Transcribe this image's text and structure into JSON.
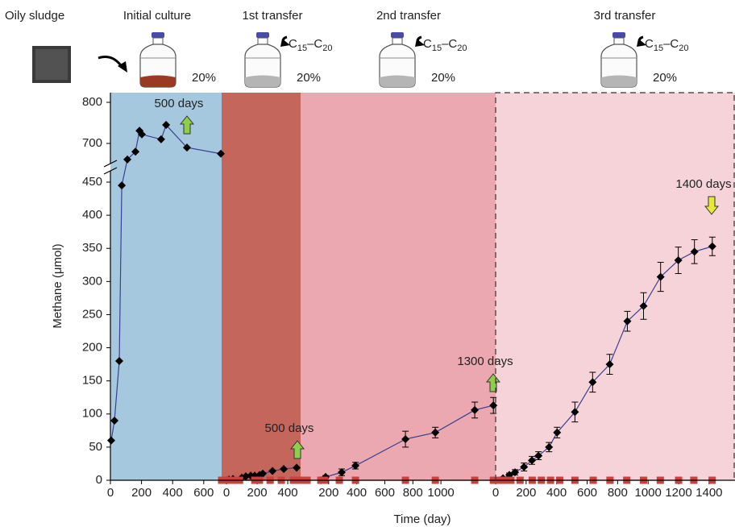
{
  "chart_data": {
    "type": "line",
    "source_label": "Oily sludge",
    "xlabel": "Time (day)",
    "ylabel": "Methane (μmol)",
    "ylim": [
      0,
      800
    ],
    "yticks": [
      0,
      50,
      100,
      150,
      200,
      250,
      300,
      350,
      400,
      450,
      700,
      800
    ],
    "axis_break": [
      450,
      700
    ],
    "panels": [
      {
        "title": "Initial culture",
        "inoculum": "20%",
        "background": "#a6c8df",
        "xlim": [
          0,
          715
        ],
        "xticks": [
          0,
          200,
          400,
          600
        ],
        "annotation": {
          "text": "500 days",
          "color": "#8fce4a",
          "direction": "up"
        },
        "series": [
          {
            "color": "#000000",
            "line_color": "#3b3f8f",
            "marker": "diamond",
            "x": [
              5,
              26,
              57,
              73,
              109,
              161,
              187,
              202,
              326,
              358,
              492,
              710
            ],
            "values": [
              60,
              90,
              180,
              445,
              661,
              680,
              731,
              722,
              710,
              745,
              690,
              675
            ]
          }
        ]
      },
      {
        "title": "1st transfer",
        "inoculum": "20%",
        "substrate": [
          "C",
          "15",
          "–C",
          "20"
        ],
        "background": "#c5665c",
        "xlim": [
          -32,
          484
        ],
        "xticks": [
          0,
          200,
          400
        ],
        "annotation": {
          "text": "500 days",
          "color": "#8fce4a",
          "direction": "up"
        },
        "series": [
          {
            "color": "#000000",
            "line_color": "#3b3f8f",
            "marker": "diamond",
            "x": [
              0,
              16,
              42,
              100,
              126,
              158,
              184,
              216,
              237,
              300,
              374,
              458
            ],
            "values": [
              0,
              1,
              2,
              4,
              6,
              7,
              7,
              8,
              10,
              14,
              17,
              19
            ]
          },
          {
            "color": "#c8413c",
            "line_color": "#c8413c",
            "marker": "square",
            "x": [
              -32,
              0,
              40,
              85,
              185,
              215,
              285,
              358,
              437,
              468
            ],
            "values": [
              0,
              0,
              0,
              0,
              0,
              0,
              0,
              0,
              0,
              0
            ]
          }
        ]
      },
      {
        "title": "2nd transfer",
        "inoculum": "20%",
        "substrate": [
          "C",
          "15",
          "–C",
          "20"
        ],
        "background": "#eba8b0",
        "xlim": [
          0,
          1390
        ],
        "xticks": [
          200,
          400,
          600,
          800,
          1000
        ],
        "annotation": {
          "text": "1300 days",
          "color": "#8fce4a",
          "direction": "up"
        },
        "series": [
          {
            "color": "#000000",
            "line_color": "#3b3f8f",
            "marker": "diamond",
            "x": [
              144,
              178,
              293,
              391,
              747,
              960,
              1241,
              1374
            ],
            "values": [
              0,
              5,
              12,
              22,
              62,
              72,
              106,
              113
            ],
            "errors": [
              null,
              2,
              5,
              5,
              12,
              8,
              12,
              12
            ]
          },
          {
            "color": "#c8413c",
            "line_color": "#c8413c",
            "marker": "square",
            "x": [
              17,
              46,
              144,
              172,
              276,
              391,
              747,
              960,
              1241,
              1374
            ],
            "values": [
              0,
              0,
              0,
              0,
              0,
              0,
              0,
              0,
              0,
              0
            ]
          }
        ]
      },
      {
        "title": "3rd transfer",
        "inoculum": "20%",
        "substrate": [
          "C",
          "15",
          "–C",
          "20"
        ],
        "background": "#f5d3d9",
        "xlim": [
          0,
          1570
        ],
        "xticks": [
          0,
          200,
          400,
          600,
          800,
          1000,
          1200,
          1400
        ],
        "annotation": {
          "text": "1400 days",
          "color": "#e8e83a",
          "direction": "down"
        },
        "series": [
          {
            "color": "#000000",
            "line_color": "#3b3f8f",
            "marker": "diamond",
            "x": [
              0,
              48,
              90,
              127,
              186,
              238,
              281,
              350,
              403,
              520,
              636,
              748,
              864,
              970,
              1082,
              1198,
              1304,
              1421
            ],
            "values": [
              0,
              3,
              8,
              12,
              20,
              30,
              37,
              50,
              72,
              103,
              148,
              175,
              240,
              263,
              307,
              332,
              345,
              353
            ],
            "errors": [
              null,
              2,
              3,
              4,
              6,
              6,
              6,
              7,
              8,
              15,
              15,
              15,
              15,
              20,
              22,
              20,
              18,
              14
            ]
          },
          {
            "color": "#c8413c",
            "line_color": "#c8413c",
            "marker": "square",
            "x": [
              0,
              30,
              60,
              100,
              160,
              240,
              300,
              360,
              420,
              520,
              640,
              750,
              860,
              970,
              1080,
              1200,
              1300,
              1420
            ],
            "values": [
              0,
              0,
              0,
              0,
              0,
              0,
              0,
              0,
              0,
              0,
              0,
              0,
              0,
              0,
              0,
              0,
              0,
              0
            ]
          }
        ]
      }
    ]
  }
}
